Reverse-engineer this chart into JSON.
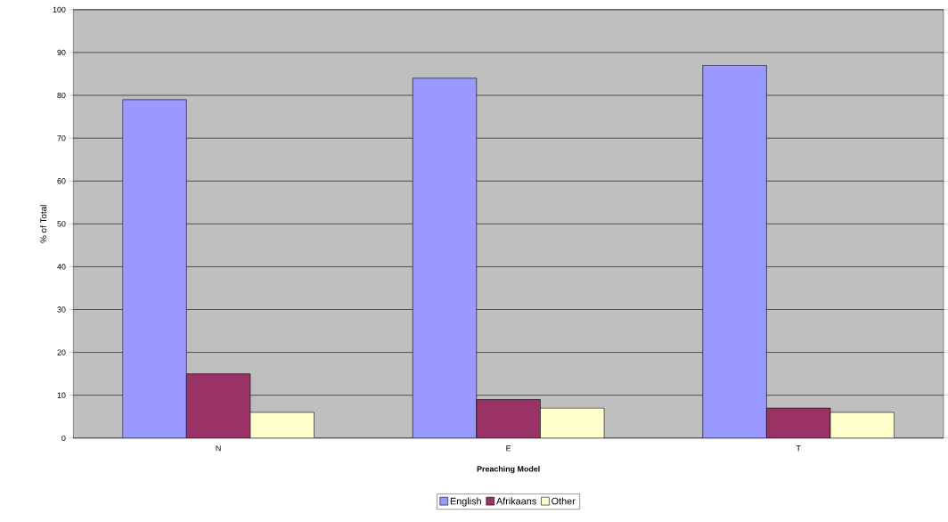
{
  "chart_data": {
    "type": "bar",
    "xlabel": "Preaching Model",
    "ylabel": "% of Total",
    "categories": [
      "N",
      "E",
      "T"
    ],
    "series": [
      {
        "name": "English",
        "color": "#9999ff",
        "values": [
          79,
          84,
          87
        ]
      },
      {
        "name": "Afrikaans",
        "color": "#993366",
        "values": [
          15,
          9,
          7
        ]
      },
      {
        "name": "Other",
        "color": "#ffffcc",
        "values": [
          6,
          7,
          6
        ]
      }
    ],
    "ylim": [
      0,
      100
    ],
    "yticks": [
      0,
      10,
      20,
      30,
      40,
      50,
      60,
      70,
      80,
      90,
      100
    ],
    "grid": "y",
    "legend": "bottom"
  }
}
